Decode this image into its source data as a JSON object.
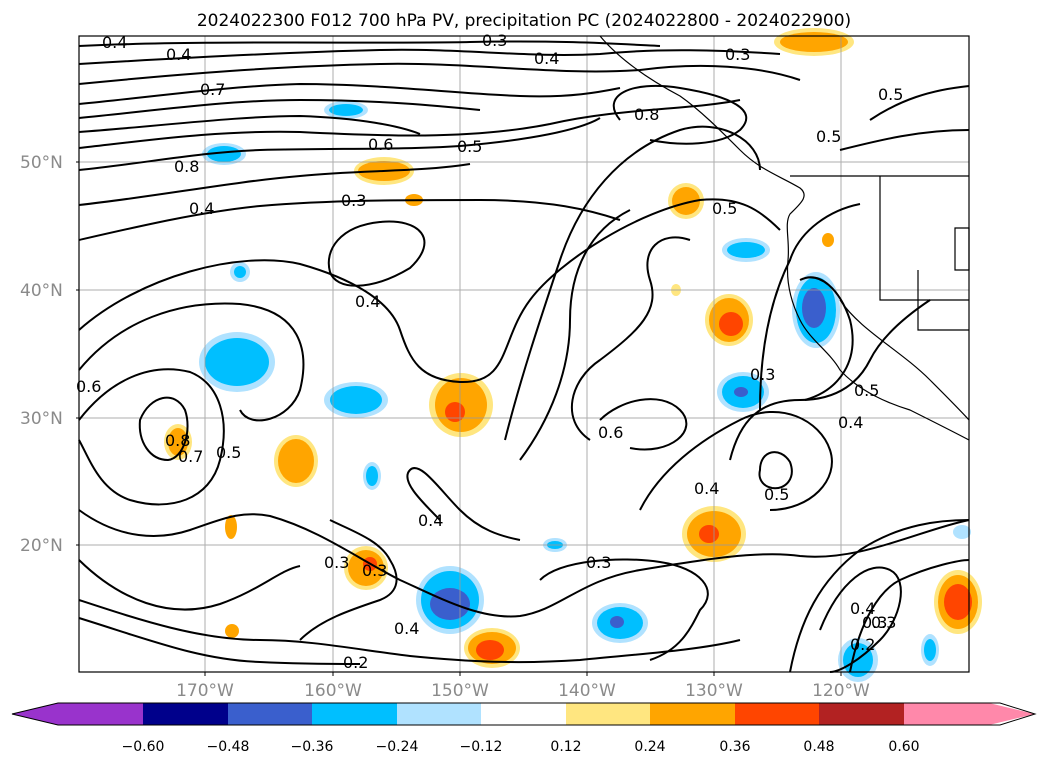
{
  "title": "2024022300 F012 700 hPa PV, precipitation PC (2024022800 - 2024022900)",
  "latitude_labels": [
    "50°N",
    "40°N",
    "30°N",
    "20°N"
  ],
  "longitude_labels": [
    "170°W",
    "160°W",
    "150°W",
    "140°W",
    "130°W",
    "120°W"
  ],
  "colorbar": {
    "tick_labels": [
      "−0.60",
      "−0.48",
      "−0.36",
      "−0.24",
      "−0.12",
      "0.12",
      "0.24",
      "0.36",
      "0.48",
      "0.60"
    ],
    "colors": [
      "#9933cc",
      "#00008b",
      "#3a5fcd",
      "#00bfff",
      "#b0e2ff",
      "#ffffff",
      "#ffe680",
      "#ffa500",
      "#ff4500",
      "#b22222",
      "#ff88aa"
    ]
  },
  "pv_contour_labels": [
    "0.4",
    "0.4",
    "0.3",
    "0.4",
    "0.3",
    "0.7",
    "0.8",
    "0.5",
    "0.5",
    "0.8",
    "0.6",
    "0.5",
    "0.3",
    "0.4",
    "0.5",
    "0.4",
    "0.6",
    "0.8",
    "0.7",
    "0.5",
    "0.6",
    "0.3",
    "0.5",
    "0.4",
    "0.4",
    "0.5",
    "0.4",
    "0.3",
    "0.3",
    "0.3",
    "0.4",
    "0.2",
    "0.3",
    "0.4",
    "0.3",
    "0.2"
  ],
  "map_features": {
    "land_outline_color": "#000000",
    "contour_color": "#000000",
    "gridline_color": "#9a9a9a"
  }
}
